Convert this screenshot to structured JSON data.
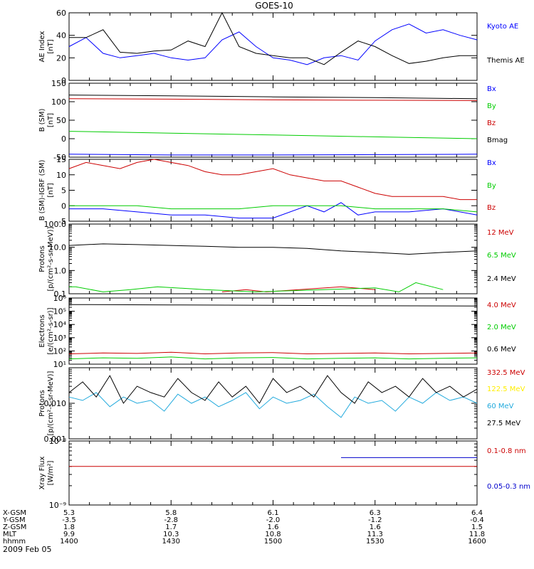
{
  "title": "GOES-10",
  "date_label": "2009 Feb 05",
  "chart_data": [
    {
      "type": "line",
      "ylabel": [
        "AE Index",
        "[nT]"
      ],
      "ylim": [
        0,
        60
      ],
      "yscale": "linear",
      "yticks": [
        0,
        20,
        40,
        60
      ],
      "xlim": [
        0,
        120
      ],
      "series": [
        {
          "name": "Kyoto AE",
          "color": "#0000ff",
          "x": [
            0,
            5,
            10,
            15,
            20,
            25,
            30,
            35,
            40,
            45,
            50,
            55,
            60,
            65,
            70,
            75,
            80,
            85,
            90,
            95,
            100,
            105,
            110,
            115,
            120
          ],
          "y": [
            30,
            38,
            24,
            20,
            22,
            24,
            20,
            18,
            20,
            36,
            43,
            30,
            20,
            18,
            14,
            20,
            22,
            18,
            35,
            45,
            50,
            42,
            45,
            40,
            36
          ]
        },
        {
          "name": "Themis AE",
          "color": "#000000",
          "x": [
            0,
            5,
            10,
            15,
            20,
            25,
            30,
            35,
            40,
            45,
            50,
            55,
            60,
            65,
            70,
            75,
            80,
            85,
            90,
            95,
            100,
            105,
            110,
            115,
            120
          ],
          "y": [
            38,
            38,
            45,
            25,
            24,
            26,
            27,
            35,
            30,
            60,
            30,
            24,
            22,
            20,
            20,
            14,
            25,
            35,
            30,
            22,
            15,
            17,
            20,
            22,
            22
          ]
        }
      ]
    },
    {
      "type": "line",
      "ylabel": [
        "B (SM)",
        "[nT]"
      ],
      "ylim": [
        -50,
        150
      ],
      "yscale": "linear",
      "yticks": [
        -50,
        0,
        50,
        100,
        150
      ],
      "xlim": [
        0,
        120
      ],
      "series": [
        {
          "name": "Bx",
          "color": "#0000ff",
          "x": [
            0,
            30,
            60,
            90,
            120
          ],
          "y": [
            -42,
            -44,
            -44,
            -43,
            -42
          ]
        },
        {
          "name": "By",
          "color": "#00cc00",
          "x": [
            0,
            30,
            60,
            90,
            120
          ],
          "y": [
            20,
            15,
            10,
            5,
            0
          ]
        },
        {
          "name": "Bz",
          "color": "#cc0000",
          "x": [
            0,
            30,
            60,
            90,
            120
          ],
          "y": [
            108,
            107,
            105,
            104,
            103
          ]
        },
        {
          "name": "Bmag",
          "color": "#000000",
          "x": [
            0,
            30,
            60,
            90,
            120
          ],
          "y": [
            118,
            116,
            113,
            111,
            108
          ]
        }
      ]
    },
    {
      "type": "line",
      "ylabel": [
        "B (SM)-IGRF (SM)",
        "[nT]"
      ],
      "ylim": [
        -5,
        15
      ],
      "yscale": "linear",
      "yticks": [
        -5,
        0,
        5,
        10,
        15
      ],
      "xlim": [
        0,
        120
      ],
      "series": [
        {
          "name": "Bx",
          "color": "#0000ff",
          "x": [
            0,
            10,
            20,
            30,
            40,
            50,
            60,
            70,
            75,
            80,
            85,
            90,
            95,
            100,
            110,
            120
          ],
          "y": [
            -1,
            -1,
            -2,
            -3,
            -3,
            -4,
            -4,
            0,
            -2,
            1,
            -3,
            -2,
            -2,
            -2,
            -1,
            -3
          ]
        },
        {
          "name": "By",
          "color": "#00cc00",
          "x": [
            0,
            10,
            20,
            30,
            40,
            50,
            60,
            70,
            80,
            90,
            100,
            110,
            120
          ],
          "y": [
            0,
            0,
            0,
            -1,
            -1,
            -1,
            0,
            0,
            0,
            -1,
            -1,
            -1,
            -2
          ]
        },
        {
          "name": "Bz",
          "color": "#cc0000",
          "x": [
            0,
            5,
            10,
            15,
            20,
            25,
            30,
            35,
            40,
            45,
            50,
            55,
            60,
            65,
            70,
            75,
            80,
            85,
            90,
            95,
            100,
            105,
            110,
            115,
            120
          ],
          "y": [
            12,
            14,
            13,
            12,
            14,
            15,
            14,
            13,
            11,
            10,
            10,
            11,
            12,
            10,
            9,
            8,
            8,
            6,
            4,
            3,
            3,
            3,
            3,
            2,
            2
          ]
        }
      ]
    },
    {
      "type": "line",
      "ylabel": [
        "Protons",
        "[p/(cm²-s-sr-MeV)]"
      ],
      "ylim": [
        0.1,
        100
      ],
      "yscale": "log",
      "yticks": [
        0.1,
        1.0,
        10.0,
        100.0
      ],
      "ytick_labels": [
        "0.1",
        "1.0",
        "10.0",
        "100.0"
      ],
      "xlim": [
        0,
        120
      ],
      "series": [
        {
          "name": "12 MeV",
          "color": "#cc0000",
          "x": [
            45,
            52,
            58,
            80,
            90
          ],
          "y": [
            0.12,
            0.15,
            0.12,
            0.2,
            0.15
          ]
        },
        {
          "name": "6.5 MeV",
          "color": "#00cc00",
          "x": [
            0,
            2,
            10,
            18,
            26,
            40,
            55,
            75,
            90,
            97,
            102,
            110
          ],
          "y": [
            0.2,
            0.2,
            0.12,
            0.15,
            0.2,
            0.15,
            0.12,
            0.15,
            0.18,
            0.12,
            0.3,
            0.15
          ]
        },
        {
          "name": "2.4 MeV",
          "color": "#000000",
          "x": [
            0,
            10,
            20,
            30,
            40,
            50,
            60,
            70,
            80,
            90,
            100,
            110,
            120
          ],
          "y": [
            12,
            14,
            13,
            12,
            11,
            10,
            10,
            9,
            7,
            6,
            5,
            6,
            7
          ]
        }
      ]
    },
    {
      "type": "line",
      "ylabel": [
        "Electrons",
        "[e/(cm²-s-sr)]"
      ],
      "ylim": [
        10,
        1000000
      ],
      "yscale": "log",
      "yticks": [
        10,
        100,
        1000,
        10000,
        100000,
        1000000
      ],
      "ytick_labels": [
        "10¹",
        "10²",
        "10³",
        "10⁴",
        "10⁵",
        "10⁶"
      ],
      "xlim": [
        0,
        120
      ],
      "series": [
        {
          "name": "4.0 MeV",
          "color": "#cc0000",
          "x": [
            0,
            10,
            20,
            30,
            40,
            50,
            60,
            70,
            80,
            90,
            100,
            110,
            120
          ],
          "y": [
            60,
            70,
            65,
            80,
            60,
            70,
            75,
            60,
            65,
            70,
            60,
            65,
            70
          ]
        },
        {
          "name": "2.0 MeV",
          "color": "#00cc00",
          "x": [
            0,
            10,
            20,
            30,
            40,
            50,
            60,
            70,
            80,
            90,
            100,
            110,
            120
          ],
          "y": [
            25,
            30,
            28,
            35,
            25,
            30,
            32,
            25,
            28,
            30,
            25,
            28,
            30
          ]
        },
        {
          "name": "0.6 MeV",
          "color": "#000000",
          "x": [
            0,
            30,
            60,
            90,
            120
          ],
          "y": [
            320000,
            300000,
            280000,
            260000,
            250000
          ]
        }
      ]
    },
    {
      "type": "line",
      "ylabel": [
        "Protons",
        "[p/(cm²-s-sr-MeV)]"
      ],
      "ylim": [
        0.001,
        0.1
      ],
      "yscale": "log",
      "yticks": [
        0.001,
        0.01
      ],
      "ytick_labels": [
        "0.001",
        "0.010"
      ],
      "xlim": [
        0,
        120
      ],
      "series": [
        {
          "name": "332.5 MeV",
          "color": "#cc0000",
          "x": [],
          "y": []
        },
        {
          "name": "122.5 MeV",
          "color": "#ffee00",
          "x": [],
          "y": []
        },
        {
          "name": "60 MeV",
          "color": "#22aadd",
          "x": [
            0,
            4,
            8,
            12,
            16,
            20,
            24,
            28,
            32,
            36,
            40,
            44,
            48,
            52,
            56,
            60,
            64,
            68,
            72,
            76,
            80,
            84,
            88,
            92,
            96,
            100,
            104,
            108,
            112,
            116,
            120
          ],
          "y": [
            0.015,
            0.012,
            0.02,
            0.008,
            0.015,
            0.01,
            0.012,
            0.006,
            0.018,
            0.01,
            0.015,
            0.008,
            0.012,
            0.02,
            0.007,
            0.015,
            0.01,
            0.012,
            0.018,
            0.008,
            0.004,
            0.015,
            0.01,
            0.012,
            0.006,
            0.015,
            0.01,
            0.02,
            0.012,
            0.015,
            0.01
          ]
        },
        {
          "name": "27.5 MeV",
          "color": "#000000",
          "x": [
            0,
            4,
            8,
            12,
            16,
            20,
            24,
            28,
            32,
            36,
            40,
            44,
            48,
            52,
            56,
            60,
            64,
            68,
            72,
            76,
            80,
            84,
            88,
            92,
            96,
            100,
            104,
            108,
            112,
            116,
            120
          ],
          "y": [
            0.02,
            0.04,
            0.015,
            0.06,
            0.01,
            0.03,
            0.02,
            0.015,
            0.05,
            0.02,
            0.012,
            0.04,
            0.015,
            0.03,
            0.01,
            0.05,
            0.02,
            0.03,
            0.015,
            0.06,
            0.02,
            0.01,
            0.04,
            0.02,
            0.03,
            0.015,
            0.05,
            0.02,
            0.03,
            0.015,
            0.025
          ]
        }
      ]
    },
    {
      "type": "line",
      "ylabel": [
        "Xray Flux",
        "[W/m²]"
      ],
      "ylim": [
        1e-09,
        1e-08
      ],
      "yscale": "log",
      "yticks": [
        1e-09,
        1e-08
      ],
      "ytick_labels": [
        "10⁻⁹",
        "10⁻⁸"
      ],
      "xlim": [
        0,
        120
      ],
      "series": [
        {
          "name": "0.1-0.8 nm",
          "color": "#cc0000",
          "x": [
            0,
            120
          ],
          "y": [
            4e-09,
            4e-09
          ]
        },
        {
          "name": "0.05-0.3 nm",
          "color": "#0000cc",
          "x": [
            80,
            120
          ],
          "y": [
            5.5e-09,
            5.5e-09
          ]
        }
      ]
    }
  ],
  "orbit_table": {
    "row_labels": [
      "X-GSM",
      "Y-GSM",
      "Z-GSM",
      "MLT",
      "hhmm"
    ],
    "columns": [
      [
        "5.3",
        "-3.5",
        "1.8",
        "9.9",
        "1400"
      ],
      [
        "5.8",
        "-2.8",
        "1.7",
        "10.3",
        "1430"
      ],
      [
        "6.1",
        "-2.0",
        "1.6",
        "10.8",
        "1500"
      ],
      [
        "6.3",
        "-1.2",
        "1.6",
        "11.3",
        "1530"
      ],
      [
        "6.4",
        "-0.4",
        "1.5",
        "11.8",
        "1600"
      ]
    ]
  }
}
